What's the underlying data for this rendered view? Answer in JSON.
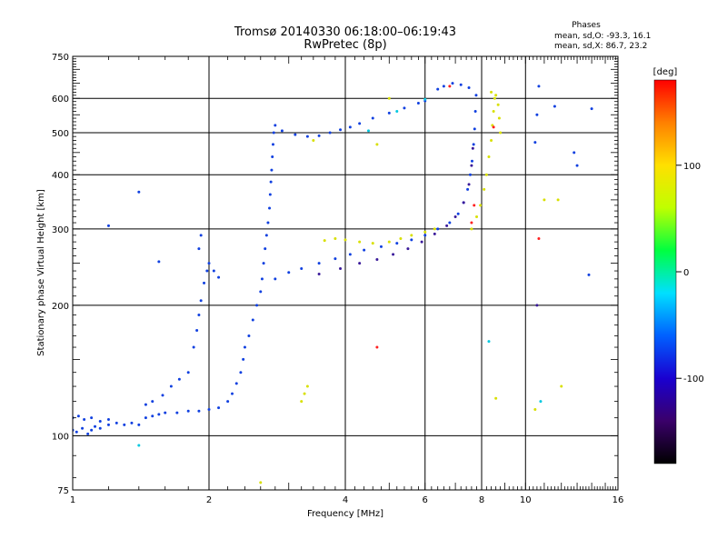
{
  "chart_data": {
    "type": "scatter",
    "title": "Tromsø 20140330 06:18:00–06:19:43",
    "subtitle": "RwPretec (8p)",
    "xlabel": "Frequency [MHz]",
    "ylabel": "Stationary phase Virtual Height [km]",
    "x_scale": "log",
    "y_scale": "log",
    "xlim": [
      1,
      16
    ],
    "ylim": [
      75,
      750
    ],
    "x_ticks": [
      1,
      2,
      4,
      6,
      8,
      10,
      16
    ],
    "y_ticks": [
      75,
      100,
      200,
      300,
      400,
      500,
      600,
      750
    ],
    "grid": true,
    "stats": {
      "heading": "Phases",
      "o_line": "mean, sd,O: -93.3, 16.1",
      "x_line": "mean, sd,X:  86.7, 23.2"
    },
    "colorbar": {
      "label": "[deg]",
      "ticks": [
        100,
        0,
        -100
      ],
      "range": [
        -180,
        180
      ],
      "colors": [
        "#000000",
        "#3a006a",
        "#1a00d0",
        "#0060ff",
        "#00e0ff",
        "#00ff40",
        "#c0ff00",
        "#ffe000",
        "#ff8000",
        "#ff0000"
      ]
    },
    "series": [
      {
        "color": "#1040e0",
        "points": [
          [
            1.0,
            103
          ],
          [
            1.02,
            102
          ],
          [
            1.05,
            104
          ],
          [
            1.08,
            101
          ],
          [
            1.1,
            103
          ],
          [
            1.12,
            105
          ],
          [
            1.15,
            104
          ],
          [
            1.2,
            106
          ],
          [
            1.25,
            107
          ],
          [
            1.3,
            106
          ],
          [
            1.35,
            107
          ],
          [
            1.4,
            106
          ],
          [
            1.0,
            110
          ],
          [
            1.03,
            111
          ],
          [
            1.06,
            109
          ],
          [
            1.1,
            110
          ],
          [
            1.15,
            108
          ],
          [
            1.2,
            109
          ],
          [
            1.45,
            110
          ],
          [
            1.5,
            111
          ],
          [
            1.55,
            112
          ],
          [
            1.6,
            113
          ],
          [
            1.7,
            113
          ],
          [
            1.8,
            114
          ],
          [
            1.9,
            114
          ],
          [
            2.0,
            115
          ],
          [
            2.1,
            116
          ],
          [
            1.45,
            118
          ],
          [
            1.5,
            120
          ],
          [
            1.58,
            124
          ],
          [
            1.65,
            130
          ],
          [
            1.72,
            135
          ],
          [
            1.8,
            140
          ],
          [
            2.2,
            120
          ],
          [
            2.25,
            125
          ],
          [
            2.3,
            132
          ],
          [
            2.35,
            140
          ],
          [
            2.38,
            150
          ],
          [
            2.4,
            160
          ],
          [
            2.45,
            170
          ],
          [
            2.5,
            185
          ],
          [
            2.55,
            200
          ],
          [
            2.6,
            215
          ],
          [
            2.62,
            230
          ],
          [
            2.64,
            250
          ],
          [
            2.66,
            270
          ],
          [
            2.68,
            290
          ],
          [
            2.7,
            310
          ],
          [
            2.72,
            335
          ],
          [
            2.73,
            360
          ],
          [
            2.74,
            385
          ],
          [
            2.75,
            410
          ],
          [
            2.76,
            440
          ],
          [
            2.77,
            470
          ],
          [
            2.78,
            500
          ],
          [
            2.8,
            520
          ],
          [
            1.85,
            160
          ],
          [
            1.88,
            175
          ],
          [
            1.9,
            190
          ],
          [
            1.92,
            205
          ],
          [
            1.95,
            225
          ],
          [
            1.98,
            240
          ],
          [
            2.0,
            250
          ],
          [
            2.05,
            240
          ],
          [
            2.1,
            232
          ],
          [
            1.9,
            270
          ],
          [
            1.92,
            290
          ],
          [
            2.9,
            505
          ],
          [
            3.1,
            495
          ],
          [
            3.3,
            490
          ],
          [
            3.5,
            492
          ],
          [
            3.7,
            500
          ],
          [
            3.9,
            508
          ],
          [
            4.1,
            515
          ],
          [
            4.3,
            525
          ],
          [
            4.6,
            540
          ],
          [
            5.0,
            555
          ],
          [
            5.4,
            570
          ],
          [
            5.8,
            585
          ],
          [
            6.0,
            592
          ],
          [
            2.8,
            230
          ],
          [
            3.0,
            238
          ],
          [
            3.2,
            243
          ],
          [
            3.5,
            250
          ],
          [
            3.8,
            256
          ],
          [
            4.1,
            262
          ],
          [
            4.4,
            268
          ],
          [
            4.8,
            273
          ],
          [
            5.2,
            278
          ],
          [
            5.6,
            283
          ],
          [
            6.0,
            290
          ],
          [
            6.4,
            300
          ],
          [
            6.8,
            310
          ],
          [
            7.1,
            325
          ],
          [
            7.3,
            345
          ],
          [
            7.45,
            370
          ],
          [
            7.55,
            400
          ],
          [
            7.62,
            430
          ],
          [
            7.68,
            470
          ],
          [
            7.72,
            510
          ],
          [
            7.75,
            560
          ],
          [
            7.78,
            610
          ],
          [
            6.4,
            630
          ],
          [
            6.6,
            640
          ],
          [
            6.9,
            650
          ],
          [
            7.2,
            645
          ],
          [
            7.5,
            635
          ],
          [
            1.2,
            305
          ],
          [
            1.4,
            365
          ],
          [
            1.55,
            252
          ],
          [
            10.7,
            640
          ],
          [
            11.6,
            575
          ],
          [
            12.8,
            450
          ],
          [
            13.8,
            235
          ],
          [
            14.0,
            568
          ],
          [
            10.6,
            550
          ],
          [
            10.5,
            475
          ],
          [
            13.0,
            420
          ]
        ]
      },
      {
        "color": "#3a1a9a",
        "points": [
          [
            3.5,
            236
          ],
          [
            3.9,
            243
          ],
          [
            4.3,
            250
          ],
          [
            4.7,
            255
          ],
          [
            5.1,
            262
          ],
          [
            5.5,
            270
          ],
          [
            5.9,
            280
          ],
          [
            6.3,
            292
          ],
          [
            6.7,
            305
          ],
          [
            7.0,
            320
          ],
          [
            7.3,
            345
          ],
          [
            7.5,
            380
          ],
          [
            7.6,
            420
          ],
          [
            7.65,
            460
          ],
          [
            10.6,
            200
          ]
        ]
      },
      {
        "color": "#d8e000",
        "points": [
          [
            3.6,
            282
          ],
          [
            3.8,
            285
          ],
          [
            4.0,
            283
          ],
          [
            4.3,
            280
          ],
          [
            4.6,
            278
          ],
          [
            5.0,
            280
          ],
          [
            5.3,
            285
          ],
          [
            5.6,
            290
          ],
          [
            6.0,
            295
          ],
          [
            6.3,
            300
          ],
          [
            7.6,
            300
          ],
          [
            7.8,
            320
          ],
          [
            7.95,
            340
          ],
          [
            8.1,
            370
          ],
          [
            8.2,
            400
          ],
          [
            8.3,
            440
          ],
          [
            8.4,
            480
          ],
          [
            8.45,
            520
          ],
          [
            8.5,
            560
          ],
          [
            8.55,
            600
          ],
          [
            8.4,
            620
          ],
          [
            8.6,
            610
          ],
          [
            8.7,
            580
          ],
          [
            8.75,
            540
          ],
          [
            8.8,
            500
          ],
          [
            3.2,
            120
          ],
          [
            3.25,
            125
          ],
          [
            3.3,
            130
          ],
          [
            3.4,
            480
          ],
          [
            4.7,
            470
          ],
          [
            5.0,
            600
          ],
          [
            11.0,
            350
          ],
          [
            11.8,
            350
          ],
          [
            10.5,
            115
          ],
          [
            12.0,
            130
          ],
          [
            2.6,
            78
          ],
          [
            8.6,
            122
          ]
        ]
      },
      {
        "color": "#ff2020",
        "points": [
          [
            7.6,
            310
          ],
          [
            7.7,
            340
          ],
          [
            4.7,
            160
          ],
          [
            6.8,
            640
          ],
          [
            10.7,
            285
          ],
          [
            8.5,
            515
          ]
        ]
      },
      {
        "color": "#00c8e0",
        "points": [
          [
            4.5,
            505
          ],
          [
            5.2,
            560
          ],
          [
            6.0,
            597
          ],
          [
            10.8,
            120
          ],
          [
            8.3,
            165
          ],
          [
            1.4,
            95
          ]
        ]
      }
    ]
  }
}
